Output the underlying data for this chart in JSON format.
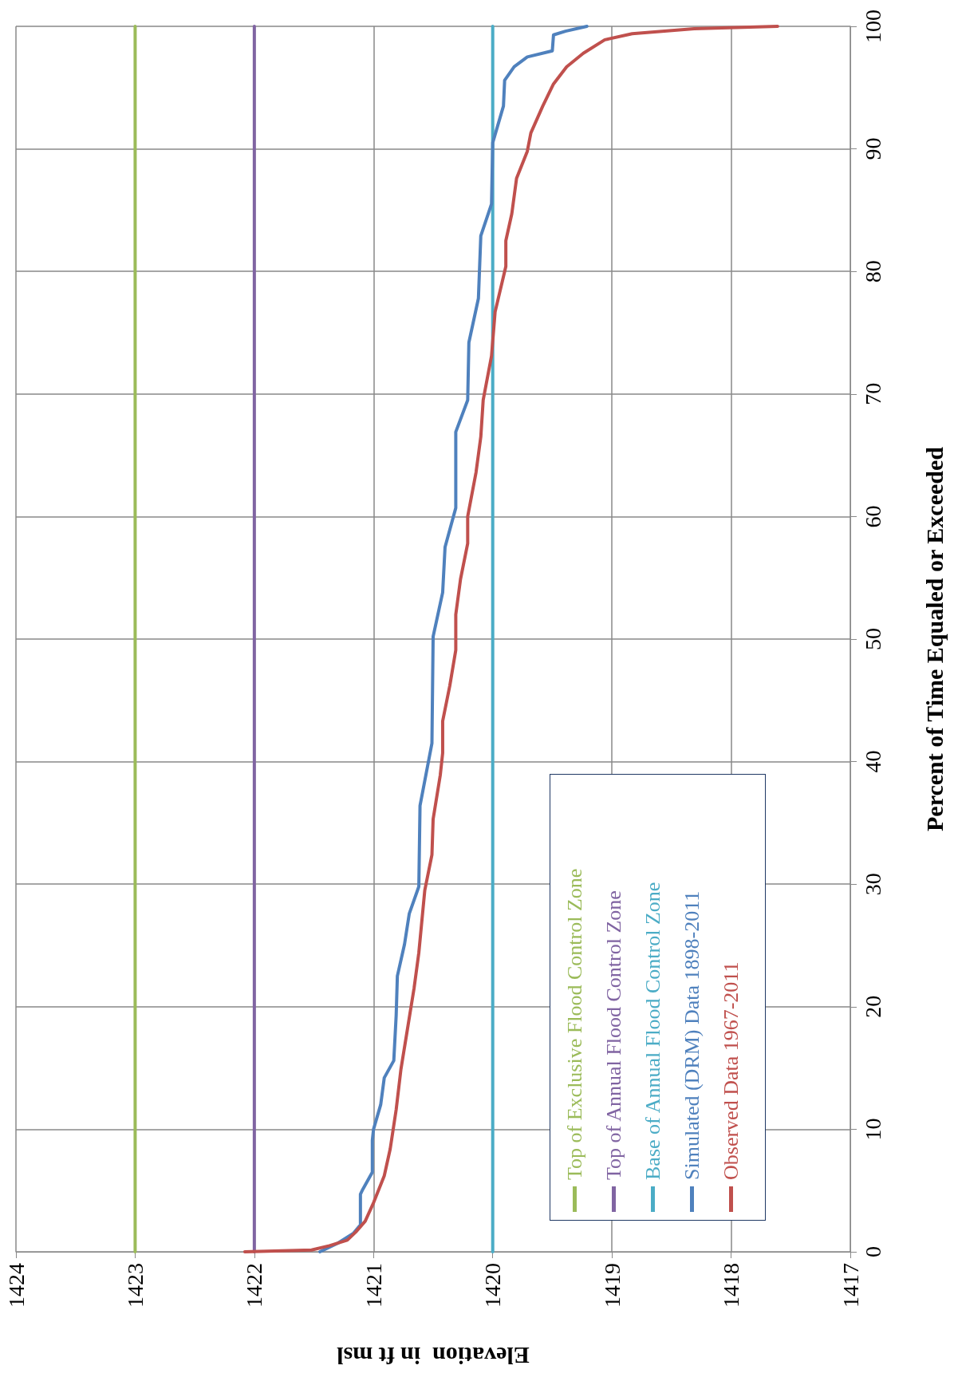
{
  "chart_data": {
    "type": "line",
    "xlabel": "Elevation  in ft msl",
    "ylabel": "Percent of Time Equaled or Exceeded",
    "xlim": [
      1424,
      1417
    ],
    "xticks": [
      1424,
      1423,
      1422,
      1421,
      1420,
      1419,
      1418,
      1417
    ],
    "ylim": [
      0,
      100
    ],
    "yticks": [
      0,
      10,
      20,
      30,
      40,
      50,
      60,
      70,
      80,
      90,
      100
    ],
    "grid": true,
    "legend": "bottom right",
    "marker": "none",
    "line_style": "solid",
    "series": [
      {
        "name": "Top of Exclusive Flood Control Zone",
        "color": "#9bbb59",
        "x": [
          1423,
          1423
        ],
        "values": [
          0,
          100
        ]
      },
      {
        "name": "Top of Annual Flood Control Zone",
        "color": "#8064a2",
        "x": [
          1422,
          1422
        ],
        "values": [
          0,
          100
        ]
      },
      {
        "name": "Base of Annual Flood Control Zone",
        "color": "#4bacc6",
        "x": [
          1420,
          1420
        ],
        "values": [
          0,
          100
        ]
      },
      {
        "name": "Simulated (DRM) Data 1898-2011",
        "color": "#4f81bd",
        "values": [
          0,
          0.7,
          1.5,
          2.2,
          4.7,
          5.1,
          6.5,
          9.1,
          10,
          12,
          14.2,
          15.6,
          19.3,
          22.5,
          25.1,
          27.6,
          29.8,
          36.4,
          41.5,
          50.2,
          53.8,
          57.5,
          60.7,
          66.9,
          69.5,
          74.2,
          77.8,
          82.9,
          85.5,
          90.5,
          93.5,
          95.6,
          96.7,
          97.5,
          98.0,
          99.3,
          99.6,
          100
        ],
        "x": [
          1421.45,
          1421.3,
          1421.17,
          1421.11,
          1421.11,
          1421.09,
          1421.01,
          1421.01,
          1421.0,
          1420.94,
          1420.91,
          1420.83,
          1420.81,
          1420.8,
          1420.74,
          1420.7,
          1420.62,
          1420.61,
          1420.51,
          1420.5,
          1420.42,
          1420.4,
          1420.31,
          1420.31,
          1420.21,
          1420.2,
          1420.12,
          1420.1,
          1420.01,
          1420.0,
          1419.91,
          1419.9,
          1419.82,
          1419.71,
          1419.5,
          1419.49,
          1419.39,
          1419.21
        ]
      },
      {
        "name": "Observed Data 1967-2011",
        "color": "#c0504d",
        "values": [
          0,
          0.15,
          0.5,
          0.95,
          1.6,
          2.5,
          4,
          6.2,
          8.4,
          11.6,
          14.9,
          18.5,
          21.5,
          24.4,
          29.5,
          32.4,
          35.3,
          38.9,
          40.7,
          43.3,
          46.2,
          49.1,
          52,
          54.9,
          57.8,
          60,
          63.6,
          66.5,
          69.5,
          73.1,
          76.7,
          80.4,
          82.5,
          84.7,
          87.6,
          89.8,
          91.3,
          93.5,
          95.3,
          96.7,
          97.8,
          98.9,
          99.4,
          99.8,
          100
        ],
        "x": [
          1422.08,
          1421.52,
          1421.37,
          1421.22,
          1421.15,
          1421.07,
          1421.0,
          1420.91,
          1420.86,
          1420.81,
          1420.77,
          1420.71,
          1420.66,
          1420.62,
          1420.57,
          1420.51,
          1420.5,
          1420.44,
          1420.42,
          1420.42,
          1420.36,
          1420.31,
          1420.31,
          1420.27,
          1420.21,
          1420.21,
          1420.14,
          1420.1,
          1420.08,
          1420.01,
          1419.98,
          1419.89,
          1419.89,
          1419.84,
          1419.8,
          1419.71,
          1419.68,
          1419.58,
          1419.49,
          1419.38,
          1419.24,
          1419.06,
          1418.83,
          1418.31,
          1417.61
        ]
      }
    ]
  }
}
